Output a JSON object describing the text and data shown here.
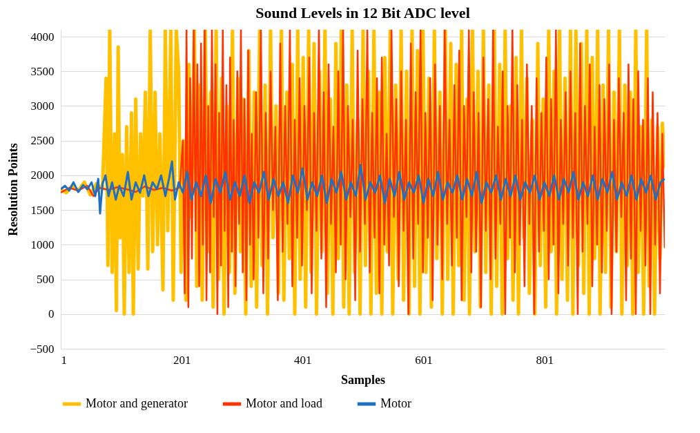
{
  "chart_data": {
    "type": "line",
    "title": "Sound Levels in 12 Bit ADC level",
    "xlabel": "Samples",
    "ylabel": "Resolution Points",
    "xlim": [
      1,
      1000
    ],
    "xticks": [
      1,
      201,
      401,
      601,
      801
    ],
    "ylim": [
      -500,
      4100
    ],
    "yticks": [
      -500,
      0,
      500,
      1000,
      1500,
      2000,
      2500,
      3000,
      3500,
      4000
    ],
    "grid": "y",
    "legend": "bottom",
    "line_style": "solid",
    "marker": "none",
    "series": [
      {
        "name": "Motor and generator",
        "color": "#ffc000",
        "x": [
          1,
          10,
          20,
          30,
          40,
          50,
          60,
          70,
          76,
          79,
          82,
          86,
          90,
          93,
          96,
          99,
          103,
          106,
          110,
          114,
          118,
          121,
          125,
          129,
          133,
          137,
          141,
          145,
          149,
          153,
          157,
          161,
          165,
          170,
          174,
          178,
          183,
          187,
          192,
          196,
          200,
          204,
          208,
          213,
          217,
          222,
          226,
          231,
          235,
          240,
          244,
          249,
          253,
          258,
          262,
          267,
          271,
          276,
          280,
          285,
          289,
          294,
          298,
          303,
          307,
          312,
          316,
          321,
          325,
          330,
          334,
          339,
          343,
          348,
          352,
          357,
          361,
          366,
          370,
          375,
          379,
          384,
          388,
          393,
          397,
          402,
          406,
          411,
          415,
          420,
          424,
          429,
          433,
          438,
          442,
          447,
          451,
          456,
          460,
          465,
          469,
          474,
          478,
          483,
          487,
          492,
          496,
          501,
          505,
          510,
          514,
          519,
          523,
          528,
          532,
          537,
          541,
          546,
          550,
          555,
          559,
          564,
          568,
          573,
          577,
          582,
          586,
          591,
          595,
          600,
          605,
          610,
          614,
          619,
          623,
          628,
          632,
          637,
          641,
          646,
          650,
          655,
          659,
          664,
          668,
          673,
          677,
          682,
          686,
          691,
          695,
          700,
          704,
          709,
          713,
          718,
          722,
          727,
          731,
          736,
          740,
          745,
          749,
          754,
          758,
          763,
          767,
          772,
          776,
          781,
          785,
          790,
          794,
          799,
          803,
          808,
          812,
          817,
          821,
          826,
          830,
          835,
          839,
          844,
          848,
          853,
          857,
          862,
          866,
          871,
          875,
          880,
          884,
          889,
          893,
          898,
          902,
          907,
          911,
          916,
          920,
          925,
          929,
          934,
          938,
          943,
          947,
          952,
          956,
          961,
          965,
          970,
          974,
          979,
          983,
          988,
          992,
          996,
          1000
        ],
        "values": [
          1800,
          1750,
          1850,
          1780,
          1900,
          1720,
          1880,
          1800,
          3400,
          700,
          4095,
          600,
          2600,
          50,
          3850,
          1100,
          2300,
          0,
          2700,
          600,
          2900,
          0,
          3100,
          650,
          2600,
          1700,
          3200,
          650,
          4095,
          900,
          3200,
          1000,
          2600,
          350,
          4095,
          1200,
          4095,
          200,
          4095,
          3500,
          600,
          2500,
          200,
          3600,
          1400,
          4095,
          400,
          3300,
          200,
          4095,
          900,
          3200,
          100,
          4095,
          500,
          3400,
          0,
          3000,
          600,
          4095,
          300,
          3400,
          900,
          3100,
          0,
          3800,
          400,
          3200,
          100,
          4095,
          700,
          3300,
          0,
          4095,
          1100,
          3000,
          300,
          4095,
          200,
          3200,
          800,
          3600,
          0,
          4095,
          500,
          3700,
          100,
          4095,
          600,
          3900,
          0,
          3500,
          900,
          4095,
          300,
          3100,
          0,
          3900,
          800,
          4095,
          100,
          3300,
          0,
          4095,
          600,
          2800,
          0,
          4095,
          700,
          3500,
          0,
          4095,
          300,
          3200,
          0,
          3700,
          900,
          4095,
          0,
          3300,
          500,
          4095,
          200,
          3500,
          0,
          4095,
          400,
          3800,
          0,
          4095,
          600,
          3400,
          100,
          4095,
          800,
          3200,
          0,
          4095,
          500,
          3900,
          0,
          3600,
          700,
          4095,
          200,
          3100,
          0,
          4095,
          900,
          3500,
          100,
          4095,
          600,
          3300,
          0,
          4095,
          400,
          3600,
          0,
          4095,
          800,
          3000,
          200,
          3700,
          0,
          4095,
          1100,
          3400,
          300,
          2800,
          0,
          3900,
          700,
          3100,
          100,
          4095,
          900,
          3500,
          0,
          4095,
          500,
          3400,
          200,
          4095,
          0,
          4095,
          700,
          3900,
          300,
          4095,
          0,
          3700,
          800,
          4095,
          0,
          3300,
          600,
          4095,
          100,
          3200,
          900,
          4095,
          0,
          3300,
          700,
          3200,
          0,
          4095,
          600,
          2700,
          0,
          4095,
          400,
          2800,
          0,
          2700,
          800,
          2750,
          2100
        ]
      },
      {
        "name": "Motor and load",
        "color": "#ff3300",
        "x": [
          1,
          15,
          30,
          45,
          55,
          65,
          80,
          95,
          110,
          125,
          140,
          155,
          170,
          185,
          198,
          203,
          206,
          209,
          212,
          215,
          218,
          221,
          224,
          227,
          230,
          233,
          236,
          239,
          242,
          245,
          248,
          251,
          254,
          257,
          260,
          263,
          266,
          269,
          272,
          275,
          278,
          281,
          284,
          287,
          290,
          293,
          296,
          299,
          302,
          305,
          308,
          311,
          314,
          317,
          320,
          324,
          328,
          332,
          336,
          340,
          344,
          348,
          352,
          356,
          360,
          364,
          368,
          372,
          376,
          380,
          384,
          388,
          392,
          396,
          400,
          404,
          408,
          412,
          416,
          420,
          424,
          428,
          432,
          436,
          440,
          444,
          448,
          452,
          456,
          460,
          464,
          468,
          472,
          476,
          480,
          484,
          488,
          492,
          496,
          500,
          504,
          508,
          512,
          516,
          520,
          524,
          528,
          532,
          536,
          540,
          544,
          548,
          552,
          556,
          560,
          564,
          568,
          572,
          576,
          580,
          584,
          588,
          592,
          596,
          600,
          604,
          608,
          612,
          616,
          620,
          624,
          628,
          632,
          636,
          640,
          644,
          648,
          652,
          656,
          660,
          664,
          668,
          672,
          676,
          680,
          684,
          688,
          692,
          696,
          700,
          704,
          708,
          712,
          716,
          720,
          724,
          728,
          732,
          736,
          740,
          744,
          748,
          752,
          756,
          760,
          764,
          768,
          772,
          776,
          780,
          784,
          788,
          792,
          796,
          800,
          804,
          808,
          812,
          816,
          820,
          824,
          828,
          832,
          836,
          840,
          844,
          848,
          852,
          856,
          860,
          864,
          868,
          872,
          876,
          880,
          884,
          888,
          892,
          896,
          900,
          904,
          908,
          912,
          916,
          920,
          924,
          928,
          932,
          936,
          940,
          944,
          948,
          952,
          956,
          960,
          964,
          968,
          972,
          976,
          980,
          984,
          988,
          992,
          996,
          1000
        ],
        "values": [
          1750,
          1820,
          1780,
          1850,
          1700,
          1820,
          1790,
          1830,
          1800,
          1760,
          1840,
          1790,
          1820,
          1780,
          1830,
          2500,
          300,
          4095,
          100,
          3400,
          800,
          4095,
          1200,
          3600,
          400,
          3900,
          1000,
          4095,
          200,
          3000,
          600,
          4095,
          1400,
          3600,
          0,
          2900,
          700,
          4095,
          1200,
          3300,
          100,
          3700,
          900,
          2800,
          400,
          3500,
          1300,
          4095,
          600,
          3100,
          200,
          3800,
          1000,
          2600,
          500,
          3200,
          1100,
          4095,
          300,
          2900,
          800,
          3500,
          1500,
          2700,
          200,
          3900,
          900,
          3000,
          1300,
          4095,
          400,
          2800,
          1100,
          3400,
          700,
          3000,
          1500,
          3700,
          300,
          2900,
          1200,
          4095,
          800,
          3200,
          100,
          3600,
          1300,
          2700,
          600,
          3500,
          1000,
          4095,
          500,
          3000,
          1400,
          2800,
          200,
          3800,
          900,
          3100,
          1300,
          4095,
          600,
          2900,
          1100,
          3400,
          300,
          3700,
          1000,
          2600,
          700,
          4095,
          1400,
          3100,
          400,
          3500,
          1200,
          2800,
          0,
          3900,
          800,
          3200,
          1300,
          4095,
          600,
          2900,
          1100,
          3400,
          200,
          3600,
          1000,
          3000,
          500,
          4095,
          1300,
          2800,
          700,
          3300,
          1100,
          3800,
          200,
          3000,
          1400,
          4095,
          600,
          3200,
          900,
          2900,
          100,
          3700,
          1200,
          3100,
          500,
          4095,
          800,
          2700,
          1300,
          3500,
          0,
          3000,
          1100,
          4095,
          600,
          3300,
          1000,
          2800,
          400,
          3600,
          1300,
          3000,
          0,
          3400,
          900,
          2900,
          1200,
          3700,
          500,
          3100,
          1000,
          4095,
          300,
          2800,
          1300,
          3200,
          700,
          3500,
          1100,
          2900,
          0,
          3900,
          900,
          3000,
          1300,
          3600,
          400,
          2700,
          1000,
          3300,
          600,
          3100,
          1200,
          3600,
          0,
          2800,
          900,
          3400,
          1400,
          2900,
          200,
          3600,
          800,
          3100,
          0,
          3500,
          1200,
          2800,
          700,
          3400,
          0,
          3200,
          1000,
          2900,
          300,
          2600,
          950
        ]
      },
      {
        "name": "Motor",
        "color": "#1f70c1",
        "x": [
          1,
          8,
          15,
          22,
          30,
          38,
          45,
          52,
          58,
          63,
          66,
          70,
          75,
          80,
          86,
          92,
          98,
          105,
          112,
          118,
          125,
          132,
          139,
          146,
          153,
          160,
          167,
          174,
          180,
          185,
          190,
          196,
          203,
          210,
          217,
          225,
          233,
          241,
          249,
          257,
          265,
          273,
          281,
          289,
          297,
          305,
          313,
          321,
          329,
          337,
          345,
          353,
          361,
          369,
          377,
          385,
          393,
          401,
          409,
          417,
          425,
          433,
          441,
          449,
          457,
          465,
          473,
          481,
          489,
          497,
          505,
          513,
          521,
          529,
          537,
          545,
          553,
          561,
          569,
          577,
          585,
          593,
          601,
          609,
          617,
          625,
          633,
          641,
          649,
          657,
          665,
          673,
          681,
          689,
          697,
          705,
          713,
          721,
          729,
          737,
          745,
          753,
          761,
          769,
          777,
          785,
          793,
          801,
          809,
          817,
          825,
          833,
          841,
          849,
          857,
          865,
          873,
          881,
          889,
          897,
          905,
          913,
          921,
          929,
          937,
          945,
          953,
          961,
          969,
          977,
          985,
          993,
          1000
        ],
        "values": [
          1800,
          1850,
          1780,
          1900,
          1760,
          1860,
          1800,
          1900,
          1700,
          1950,
          1450,
          1880,
          2000,
          1700,
          1900,
          1650,
          1850,
          1700,
          2050,
          1650,
          1900,
          1750,
          2000,
          1700,
          1900,
          1800,
          2000,
          1700,
          1950,
          2200,
          1650,
          1900,
          1750,
          2050,
          1650,
          1900,
          1700,
          2000,
          1600,
          1950,
          1750,
          2050,
          1650,
          1900,
          1700,
          2000,
          1600,
          1900,
          1750,
          2050,
          1650,
          1950,
          1700,
          1900,
          1600,
          2000,
          1750,
          2100,
          1650,
          1900,
          1700,
          2000,
          1600,
          1950,
          1750,
          2050,
          1650,
          1900,
          1700,
          2150,
          1650,
          1900,
          1750,
          2000,
          1600,
          1950,
          1700,
          2050,
          1650,
          1900,
          1750,
          2000,
          1600,
          1950,
          1700,
          2050,
          1650,
          1900,
          1750,
          2000,
          1650,
          1950,
          1700,
          2050,
          1600,
          1900,
          1750,
          2000,
          1650,
          1950,
          1700,
          2000,
          1650,
          1900,
          1750,
          2000,
          1650,
          1900,
          1700,
          2000,
          1650,
          1950,
          1750,
          2050,
          1650,
          1900,
          1700,
          2000,
          1650,
          1950,
          1750,
          2050,
          1650,
          1900,
          1700,
          2000,
          1650,
          1950,
          1750,
          2000,
          1650,
          1900,
          1950
        ]
      }
    ]
  }
}
